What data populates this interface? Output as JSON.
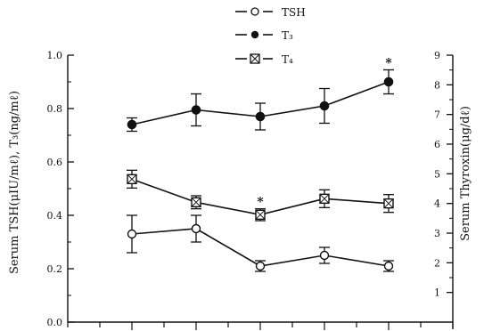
{
  "chart_data": {
    "type": "line",
    "title": "",
    "x": [
      1,
      2,
      3,
      4,
      5
    ],
    "xlabel": "",
    "xlim": [
      0,
      6
    ],
    "ylabel_left": "Serum TSH(μIU/mℓ), T₃(ng/mℓ)",
    "ylim_left": [
      0.0,
      1.0
    ],
    "yticks_left": [
      "0.0",
      "0.2",
      "0.4",
      "0.6",
      "0.8",
      "1.0"
    ],
    "ylabel_right": "Serum Thyroxin(μg/dℓ)",
    "ylim_right": [
      0,
      9
    ],
    "yticks_right": [
      "1",
      "2",
      "3",
      "4",
      "5",
      "6",
      "7",
      "8",
      "9"
    ],
    "grid": false,
    "legend_position": "top-center",
    "series": [
      {
        "name": "TSH",
        "axis": "left",
        "marker": "open-circle",
        "values": [
          0.33,
          0.35,
          0.21,
          0.25,
          0.21
        ],
        "error": [
          0.07,
          0.05,
          0.02,
          0.03,
          0.02
        ],
        "significant": [
          false,
          false,
          false,
          false,
          false
        ]
      },
      {
        "name": "T₃",
        "axis": "left",
        "marker": "filled-circle",
        "values": [
          0.74,
          0.795,
          0.77,
          0.81,
          0.9
        ],
        "error": [
          0.025,
          0.06,
          0.05,
          0.065,
          0.045
        ],
        "significant": [
          false,
          false,
          false,
          false,
          true
        ]
      },
      {
        "name": "T₄",
        "axis": "right",
        "marker": "crossed-square",
        "values": [
          4.82,
          4.04,
          3.62,
          4.16,
          4.0
        ],
        "error": [
          0.3,
          0.22,
          0.2,
          0.3,
          0.3
        ],
        "significant": [
          false,
          false,
          true,
          false,
          false
        ]
      }
    ],
    "significance_mark": "*"
  }
}
